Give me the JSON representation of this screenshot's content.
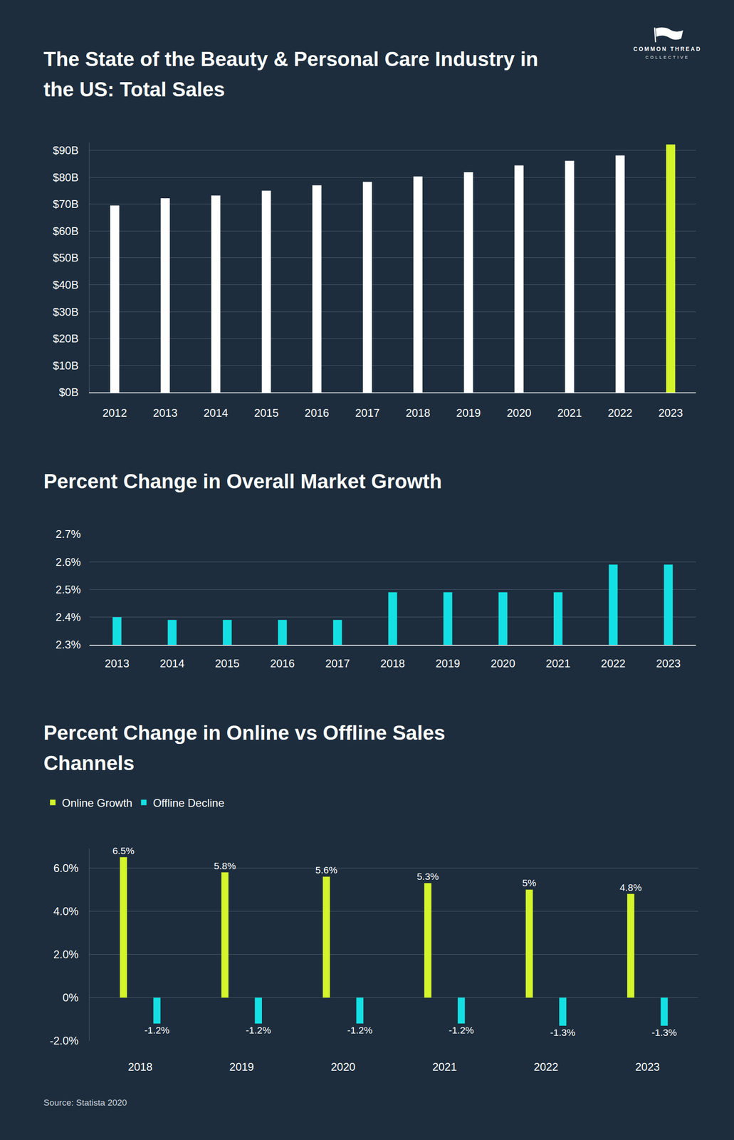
{
  "logo": {
    "name": "COMMON THREAD",
    "subtitle": "COLLECTIVE"
  },
  "source": "Source: Statista 2020",
  "chart_data": [
    {
      "type": "bar",
      "title": "The State of the Beauty & Personal Care Industry in the US: Total Sales",
      "categories": [
        "2012",
        "2013",
        "2014",
        "2015",
        "2016",
        "2017",
        "2018",
        "2019",
        "2020",
        "2021",
        "2022",
        "2023"
      ],
      "values": [
        69.5,
        72.2,
        73.2,
        75.0,
        77.0,
        78.3,
        80.3,
        81.9,
        84.4,
        86.1,
        88.1,
        92.2
      ],
      "colors": [
        "#ffffff",
        "#ffffff",
        "#ffffff",
        "#ffffff",
        "#ffffff",
        "#ffffff",
        "#ffffff",
        "#ffffff",
        "#ffffff",
        "#ffffff",
        "#ffffff",
        "#d4f52b"
      ],
      "ylim": [
        0,
        93
      ],
      "yticks": [
        {
          "value": 0,
          "label": "$0B"
        },
        {
          "value": 10,
          "label": "$10B"
        },
        {
          "value": 20,
          "label": "$20B"
        },
        {
          "value": 30,
          "label": "$30B"
        },
        {
          "value": 40,
          "label": "$40B"
        },
        {
          "value": 50,
          "label": "$50B"
        },
        {
          "value": 60,
          "label": "$60B"
        },
        {
          "value": 70,
          "label": "$70B"
        },
        {
          "value": 80,
          "label": "$80B"
        },
        {
          "value": 90,
          "label": "$90B"
        }
      ],
      "grid": true
    },
    {
      "type": "bar",
      "title": "Percent Change in Overall Market Growth",
      "categories": [
        "2013",
        "2014",
        "2015",
        "2016",
        "2017",
        "2018",
        "2019",
        "2020",
        "2021",
        "2022",
        "2023"
      ],
      "values": [
        2.4,
        2.39,
        2.39,
        2.39,
        2.39,
        2.49,
        2.49,
        2.49,
        2.49,
        2.59,
        2.59
      ],
      "color": "#14e0e3",
      "ylim": [
        2.3,
        2.7
      ],
      "yticks": [
        {
          "value": 2.3,
          "label": "2.3%"
        },
        {
          "value": 2.4,
          "label": "2.4%"
        },
        {
          "value": 2.5,
          "label": "2.5%"
        },
        {
          "value": 2.6,
          "label": "2.6%"
        },
        {
          "value": 2.7,
          "label": "2.7%"
        }
      ],
      "grid": true
    },
    {
      "type": "bar",
      "title": "Percent Change in Online vs Offline Sales Channels",
      "categories": [
        "2018",
        "2019",
        "2020",
        "2021",
        "2022",
        "2023"
      ],
      "series": [
        {
          "name": "Online Growth",
          "color": "#d4f52b",
          "values": [
            6.5,
            5.8,
            5.6,
            5.3,
            5,
            4.8
          ],
          "value_labels": [
            "6.5%",
            "5.8%",
            "5.6%",
            "5.3%",
            "5%",
            "4.8%"
          ]
        },
        {
          "name": "Offline Decline",
          "color": "#14e0e3",
          "values": [
            -1.2,
            -1.2,
            -1.2,
            -1.2,
            -1.3,
            -1.3
          ],
          "value_labels": [
            "-1.2%",
            "-1.2%",
            "-1.2%",
            "-1.2%",
            "-1.3%",
            "-1.3%"
          ]
        }
      ],
      "ylim": [
        -2,
        6.9
      ],
      "yticks": [
        {
          "value": -2,
          "label": "-2.0%"
        },
        {
          "value": 0,
          "label": "0%"
        },
        {
          "value": 2,
          "label": "2.0%"
        },
        {
          "value": 4,
          "label": "4.0%"
        },
        {
          "value": 6,
          "label": "6.0%"
        }
      ],
      "grid": true,
      "legend": "top-left",
      "data_labels": true
    }
  ]
}
